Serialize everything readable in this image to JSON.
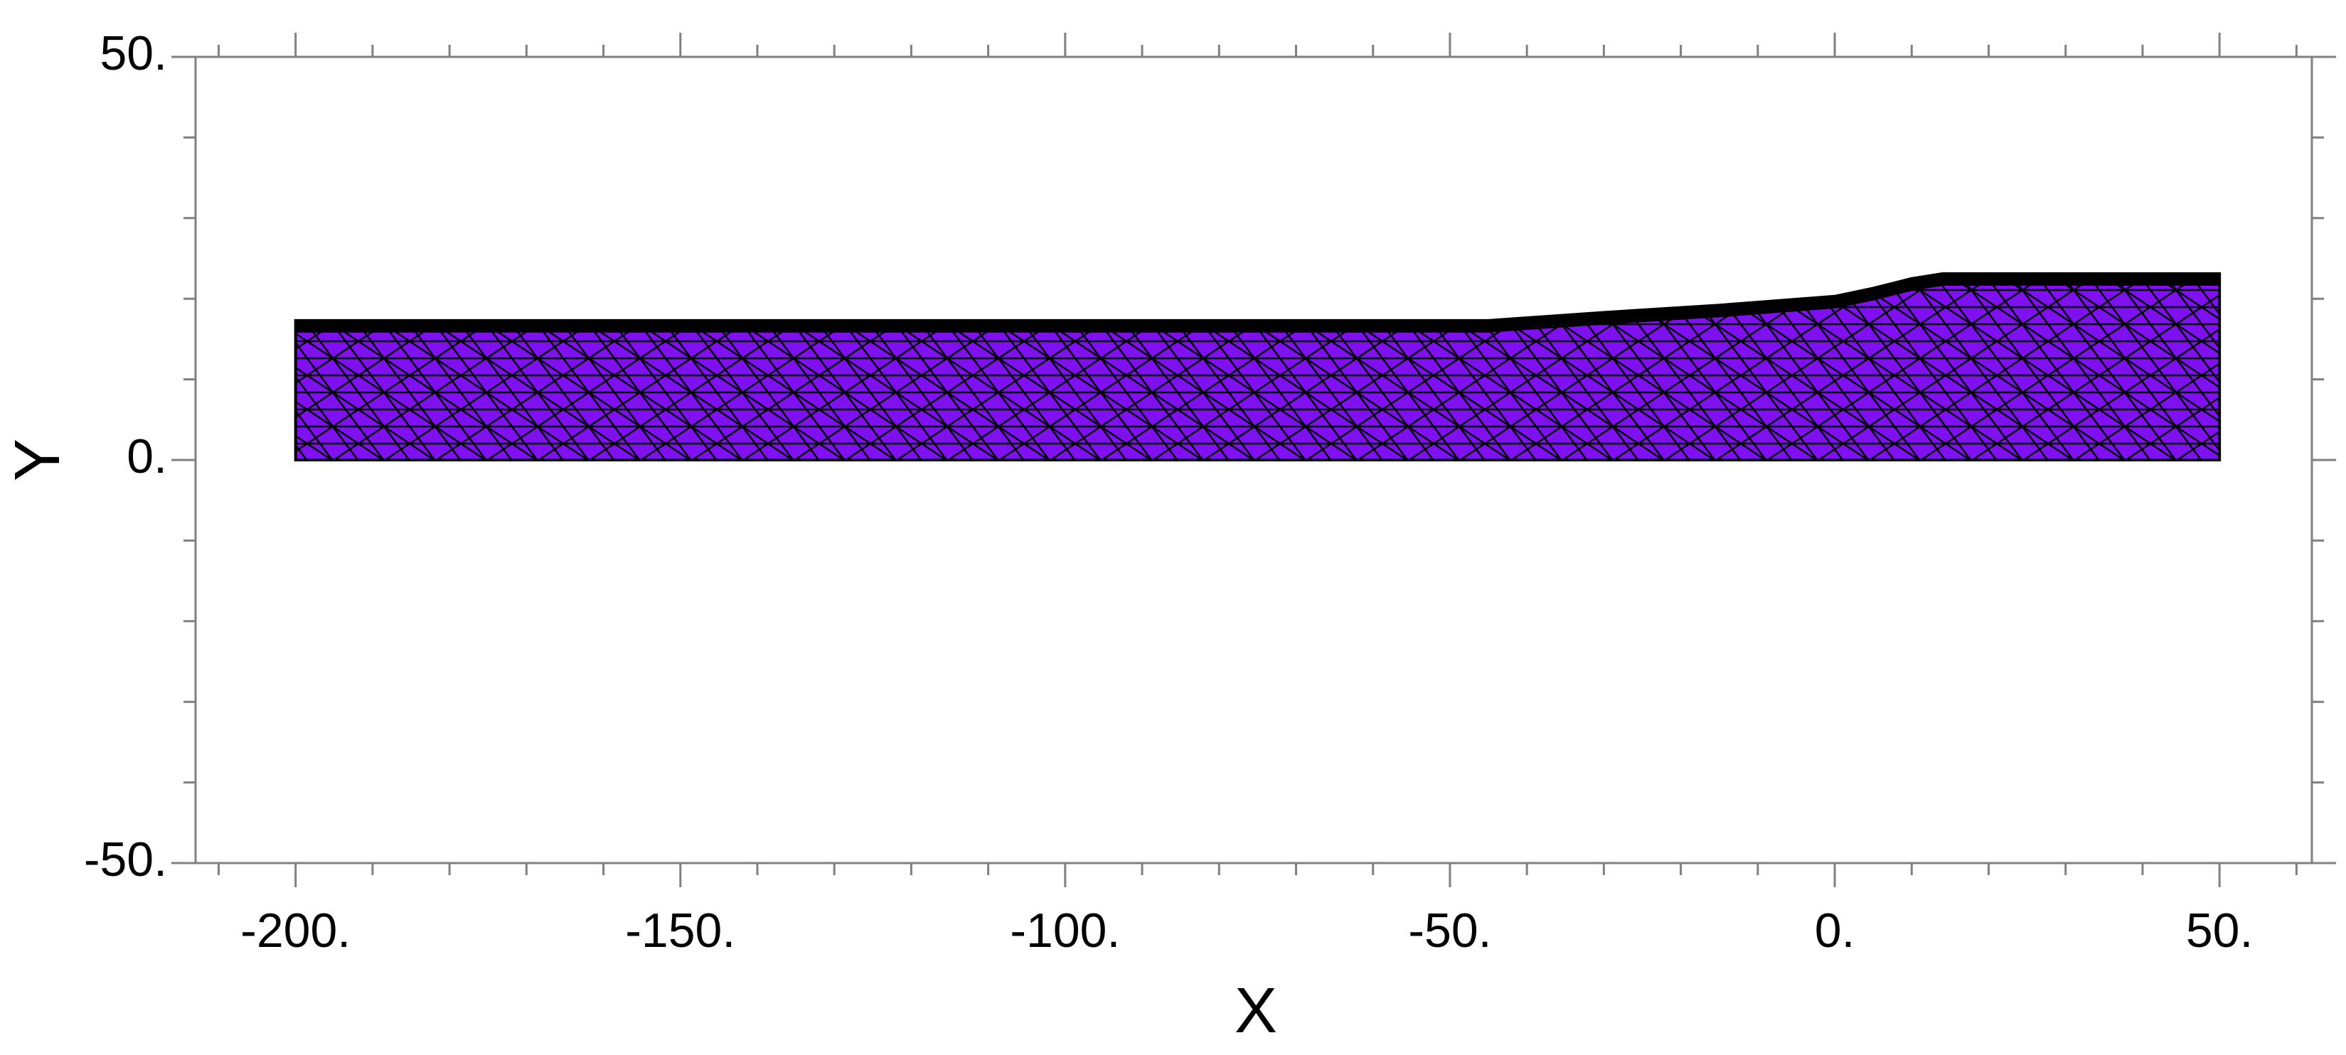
{
  "chart_data": {
    "type": "mesh",
    "x_label": "X",
    "y_label": "Y",
    "x": [
      -200,
      -200,
      -45,
      -30,
      -15,
      0,
      5,
      10,
      14,
      50,
      50
    ],
    "values": [
      0,
      17.3,
      17.3,
      18.3,
      19.2,
      20.3,
      21.3,
      22.5,
      23.1,
      23.1,
      0
    ],
    "color": "#7f10f0",
    "edge_color": "#000000",
    "xlim": [
      -213,
      62
    ],
    "ylim": [
      -50,
      50
    ],
    "xticks": [
      {
        "value": -200,
        "label": "-200."
      },
      {
        "value": -150,
        "label": "-150."
      },
      {
        "value": -100,
        "label": "-100."
      },
      {
        "value": -50,
        "label": "-50."
      },
      {
        "value": 0,
        "label": "0."
      },
      {
        "value": 50,
        "label": "50."
      }
    ],
    "yticks": [
      {
        "value": -50,
        "label": "-50."
      },
      {
        "value": 0,
        "label": "0."
      },
      {
        "value": 50,
        "label": "50."
      }
    ],
    "x_minor_ticks": [
      -210,
      -190,
      -180,
      -170,
      -160,
      -140,
      -130,
      -120,
      -110,
      -90,
      -80,
      -70,
      -60,
      -40,
      -30,
      -20,
      -10,
      10,
      20,
      30,
      40,
      60
    ],
    "y_minor_ticks": [
      -40,
      -30,
      -20,
      -10,
      10,
      20,
      30,
      40
    ]
  }
}
